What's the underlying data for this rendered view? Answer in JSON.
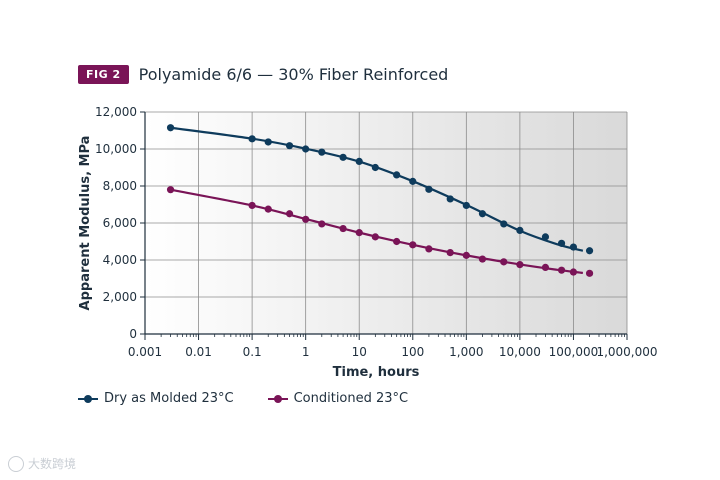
{
  "figure": {
    "badge": "FIG 2",
    "title": "Polyamide 6/6 — 30% Fiber Reinforced"
  },
  "colors": {
    "accent": "#7a1457",
    "dry": "#0e3b5c",
    "conditioned": "#7a1457",
    "plot_bg_light": "#ffffff",
    "plot_bg_dark": "#dcdcdc",
    "grid": "#8c8c8c"
  },
  "chart_data": {
    "type": "line",
    "title": "Polyamide 6/6 — 30% Fiber Reinforced",
    "xlabel": "Time, hours",
    "ylabel": "Apparent Modulus, MPa",
    "xscale": "log",
    "xlim": [
      0.001,
      1000000
    ],
    "ylim": [
      0,
      12000
    ],
    "grid": true,
    "legend_position": "bottom-left",
    "x_ticks": [
      0.001,
      0.01,
      0.1,
      1,
      10,
      100,
      1000,
      10000,
      100000,
      1000000
    ],
    "x_tick_labels": [
      "0.001",
      "0.01",
      "0.1",
      "1",
      "10",
      "100",
      "1,000",
      "10,000",
      "100,000",
      "1,000,000"
    ],
    "y_ticks": [
      0,
      2000,
      4000,
      6000,
      8000,
      10000,
      12000
    ],
    "y_tick_labels": [
      "0",
      "2,000",
      "4,000",
      "6,000",
      "8,000",
      "10,000",
      "12,000"
    ],
    "series": [
      {
        "name": "Dry as Molded 23°C",
        "color": "#0e3b5c",
        "points": [
          {
            "x": 0.003,
            "y": 11150
          },
          {
            "x": 0.1,
            "y": 10550
          },
          {
            "x": 0.2,
            "y": 10380
          },
          {
            "x": 0.5,
            "y": 10180
          },
          {
            "x": 1,
            "y": 10000
          },
          {
            "x": 2,
            "y": 9830
          },
          {
            "x": 5,
            "y": 9550
          },
          {
            "x": 10,
            "y": 9330
          },
          {
            "x": 20,
            "y": 9000
          },
          {
            "x": 50,
            "y": 8600
          },
          {
            "x": 100,
            "y": 8250
          },
          {
            "x": 200,
            "y": 7820
          },
          {
            "x": 500,
            "y": 7300
          },
          {
            "x": 1000,
            "y": 6950
          },
          {
            "x": 2000,
            "y": 6500
          },
          {
            "x": 5000,
            "y": 5950
          },
          {
            "x": 10000,
            "y": 5600
          },
          {
            "x": 30000,
            "y": 5250
          },
          {
            "x": 60000,
            "y": 4900
          },
          {
            "x": 100000,
            "y": 4700
          },
          {
            "x": 200000,
            "y": 4500
          }
        ],
        "fit": [
          {
            "x": 0.003,
            "y": 11150
          },
          {
            "x": 0.1,
            "y": 10560
          },
          {
            "x": 1,
            "y": 10020
          },
          {
            "x": 10,
            "y": 9320
          },
          {
            "x": 100,
            "y": 8260
          },
          {
            "x": 1000,
            "y": 6980
          },
          {
            "x": 10000,
            "y": 5580
          },
          {
            "x": 50000,
            "y": 4850
          },
          {
            "x": 150000,
            "y": 4500
          }
        ]
      },
      {
        "name": "Conditioned 23°C",
        "color": "#7a1457",
        "points": [
          {
            "x": 0.003,
            "y": 7800
          },
          {
            "x": 0.1,
            "y": 6950
          },
          {
            "x": 0.2,
            "y": 6750
          },
          {
            "x": 0.5,
            "y": 6500
          },
          {
            "x": 1,
            "y": 6200
          },
          {
            "x": 2,
            "y": 5950
          },
          {
            "x": 5,
            "y": 5700
          },
          {
            "x": 10,
            "y": 5480
          },
          {
            "x": 20,
            "y": 5250
          },
          {
            "x": 50,
            "y": 5000
          },
          {
            "x": 100,
            "y": 4820
          },
          {
            "x": 200,
            "y": 4600
          },
          {
            "x": 500,
            "y": 4400
          },
          {
            "x": 1000,
            "y": 4250
          },
          {
            "x": 2000,
            "y": 4050
          },
          {
            "x": 5000,
            "y": 3900
          },
          {
            "x": 10000,
            "y": 3750
          },
          {
            "x": 30000,
            "y": 3600
          },
          {
            "x": 60000,
            "y": 3450
          },
          {
            "x": 100000,
            "y": 3350
          },
          {
            "x": 200000,
            "y": 3280
          }
        ],
        "fit": [
          {
            "x": 0.003,
            "y": 7800
          },
          {
            "x": 0.1,
            "y": 6950
          },
          {
            "x": 1,
            "y": 6220
          },
          {
            "x": 10,
            "y": 5480
          },
          {
            "x": 100,
            "y": 4820
          },
          {
            "x": 1000,
            "y": 4250
          },
          {
            "x": 10000,
            "y": 3760
          },
          {
            "x": 50000,
            "y": 3470
          },
          {
            "x": 150000,
            "y": 3300
          }
        ]
      }
    ]
  },
  "watermark": {
    "text": "大数跨境"
  }
}
